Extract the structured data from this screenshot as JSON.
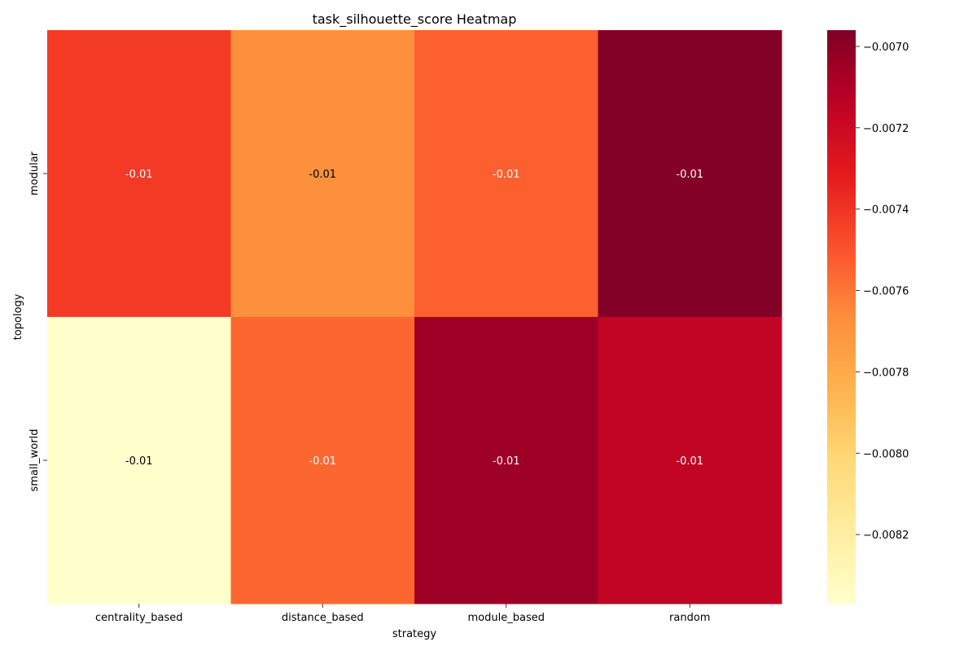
{
  "chart_data": {
    "type": "heatmap",
    "title": "task_silhouette_score Heatmap",
    "xlabel": "strategy",
    "ylabel": "topology",
    "x_categories": [
      "centrality_based",
      "distance_based",
      "module_based",
      "random"
    ],
    "y_categories": [
      "modular",
      "small_world"
    ],
    "values": [
      [
        -0.00742,
        -0.00768,
        -0.00754,
        -0.00697
      ],
      [
        -0.00837,
        -0.00756,
        -0.00705,
        -0.00716
      ]
    ],
    "annotations": [
      [
        "-0.01",
        "-0.01",
        "-0.01",
        "-0.01"
      ],
      [
        "-0.01",
        "-0.01",
        "-0.01",
        "-0.01"
      ]
    ],
    "colormap": "YlOrRd",
    "color_range": [
      -0.00837,
      -0.00696
    ],
    "colorbar": {
      "ticks": [
        -0.007,
        -0.0072,
        -0.0074,
        -0.0076,
        -0.0078,
        -0.008,
        -0.0082
      ],
      "tick_labels": [
        "−0.0070",
        "−0.0072",
        "−0.0074",
        "−0.0076",
        "−0.0078",
        "−0.0080",
        "−0.0082"
      ]
    }
  }
}
